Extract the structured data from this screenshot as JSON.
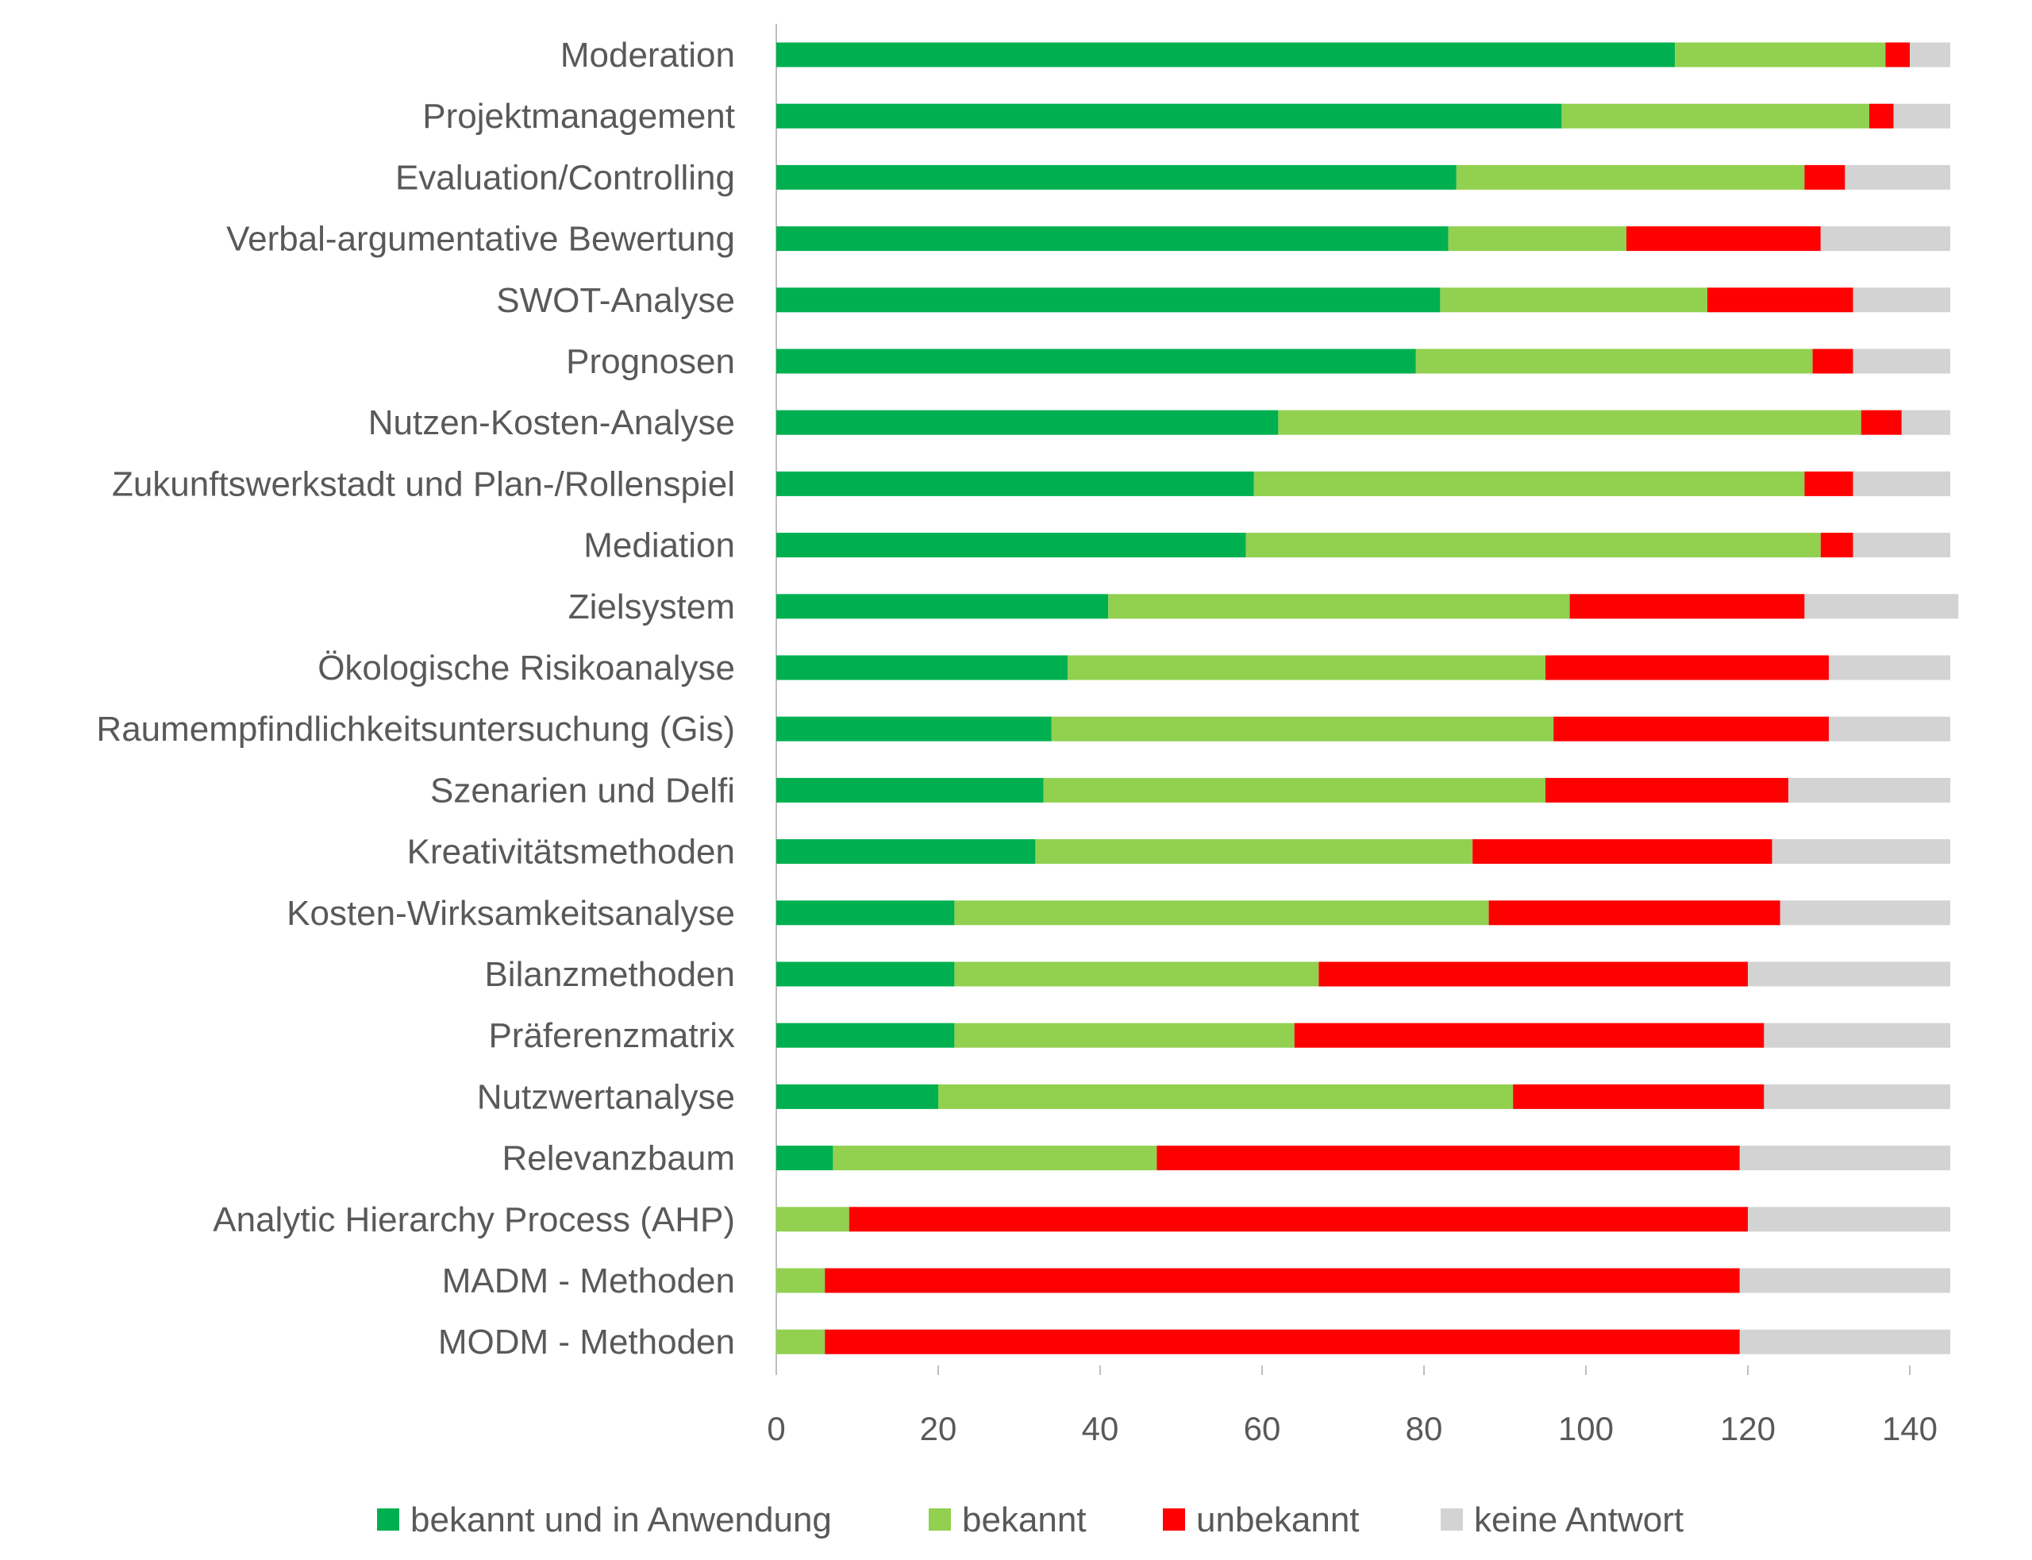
{
  "chart_data": {
    "type": "bar",
    "orientation": "horizontal",
    "stacked": true,
    "title": "",
    "xlabel": "",
    "ylabel": "",
    "xlim": [
      0,
      145
    ],
    "xticks": [
      0,
      20,
      40,
      60,
      80,
      100,
      120,
      140
    ],
    "grid": false,
    "legend_position": "bottom",
    "categories": [
      "Moderation",
      "Projektmanagement",
      "Evaluation/Controlling",
      "Verbal-argumentative Bewertung",
      "SWOT-Analyse",
      "Prognosen",
      "Nutzen-Kosten-Analyse",
      "Zukunftswerkstadt und Plan-/Rollenspiel",
      "Mediation",
      "Zielsystem",
      "Ökologische Risikoanalyse",
      "Raumempfindlichkeitsuntersuchung (Gis)",
      "Szenarien und Delfi",
      "Kreativitätsmethoden",
      "Kosten-Wirksamkeitsanalyse",
      "Bilanzmethoden",
      "Präferenzmatrix",
      "Nutzwertanalyse",
      "Relevanzbaum",
      "Analytic Hierarchy Process (AHP)",
      "MADM - Methoden",
      "MODM - Methoden"
    ],
    "series": [
      {
        "name": "bekannt und in Anwendung",
        "color": "#00B050",
        "values": [
          111,
          97,
          84,
          83,
          82,
          79,
          62,
          59,
          58,
          41,
          36,
          34,
          33,
          32,
          22,
          22,
          22,
          20,
          7,
          0,
          0,
          0
        ]
      },
      {
        "name": "bekannt",
        "color": "#92D050",
        "values": [
          26,
          38,
          43,
          22,
          33,
          49,
          72,
          68,
          71,
          57,
          59,
          62,
          62,
          54,
          66,
          45,
          42,
          71,
          40,
          9,
          6,
          6
        ]
      },
      {
        "name": "unbekannt",
        "color": "#FF0000",
        "values": [
          3,
          3,
          5,
          24,
          18,
          5,
          5,
          6,
          4,
          29,
          35,
          34,
          30,
          37,
          36,
          53,
          58,
          31,
          72,
          111,
          113,
          113
        ]
      },
      {
        "name": "keine Antwort",
        "color": "#D3D3D3",
        "values": [
          5,
          7,
          13,
          16,
          12,
          12,
          6,
          12,
          12,
          19,
          15,
          15,
          20,
          22,
          21,
          25,
          23,
          23,
          26,
          25,
          26,
          26
        ]
      }
    ]
  }
}
